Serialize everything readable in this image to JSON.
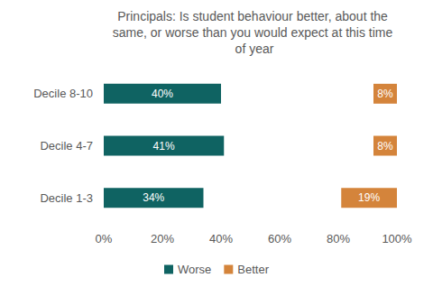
{
  "chart_data": {
    "type": "bar",
    "orientation": "horizontal",
    "title": "Principals: Is student behaviour better, about the same, or worse than you would expect at this time of year",
    "categories": [
      "Decile 8-10",
      "Decile 4-7",
      "Decile 1-3"
    ],
    "series": [
      {
        "name": "Worse",
        "color": "#0f6362",
        "values": [
          40,
          41,
          34
        ],
        "value_labels": [
          "40%",
          "41%",
          "34%"
        ]
      },
      {
        "name": "Better",
        "color": "#d4843b",
        "values": [
          8,
          8,
          19
        ],
        "value_labels": [
          "8%",
          "8%",
          "19%"
        ]
      }
    ],
    "xlim": [
      0,
      100
    ],
    "xticks": [
      {
        "value": 0,
        "label": "0%"
      },
      {
        "value": 20,
        "label": "20%"
      },
      {
        "value": 40,
        "label": "40%"
      },
      {
        "value": 60,
        "label": "60%"
      },
      {
        "value": 80,
        "label": "80%"
      },
      {
        "value": 100,
        "label": "100%"
      }
    ],
    "grid": false,
    "legend": "bottom",
    "data_labels": true
  }
}
